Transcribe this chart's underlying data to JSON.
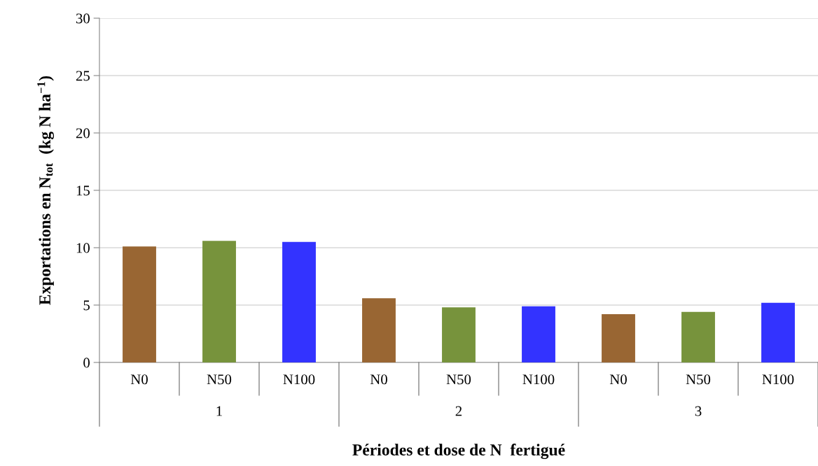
{
  "chart_data": {
    "type": "bar",
    "xlabel": "Périodes et dose de N  fertigué",
    "ylabel": "Exportations en N$_{tot}$  (kg N ha$^{−1}$)",
    "categories": [
      "N0",
      "N50",
      "N100",
      "N0",
      "N50",
      "N100",
      "N0",
      "N50",
      "N100"
    ],
    "values": [
      10.1,
      10.6,
      10.5,
      5.6,
      4.8,
      4.9,
      4.2,
      4.4,
      5.2
    ],
    "colors": [
      "#996633",
      "#77933c",
      "#3333ff",
      "#996633",
      "#77933c",
      "#3333ff",
      "#996633",
      "#77933c",
      "#3333ff"
    ],
    "annotations": [
      "1",
      "2",
      "3"
    ],
    "ylim": [
      0,
      30
    ],
    "yticks": [
      0,
      5,
      10,
      15,
      20,
      25,
      30
    ],
    "grid": "y",
    "legend": false
  }
}
